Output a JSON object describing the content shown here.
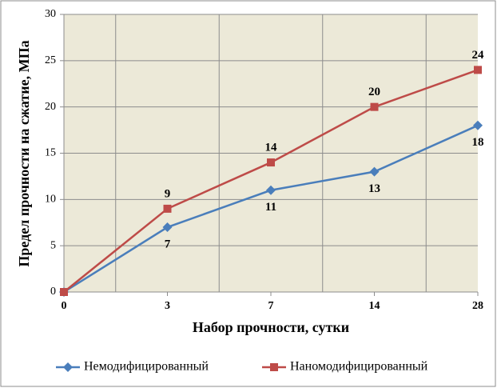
{
  "chart_data": {
    "type": "line",
    "y_label": "Предел прочности на сжатие, МПа",
    "x_label": "Набор прочности, сутки",
    "categories": [
      "0",
      "3",
      "7",
      "14",
      "28"
    ],
    "series": [
      {
        "name": "Немодифицированный",
        "color": "#4a7ebb",
        "marker": "diamond",
        "label_position": "below",
        "values": [
          0,
          7,
          11,
          13,
          18
        ]
      },
      {
        "name": "Наномодифицированный",
        "color": "#be4b48",
        "marker": "square",
        "label_position": "above",
        "values": [
          0,
          9,
          14,
          20,
          24
        ]
      }
    ],
    "ylim": [
      0,
      30
    ],
    "yticks": [
      0,
      5,
      10,
      15,
      20,
      25,
      30
    ],
    "grid": true,
    "legend": "bottom"
  }
}
